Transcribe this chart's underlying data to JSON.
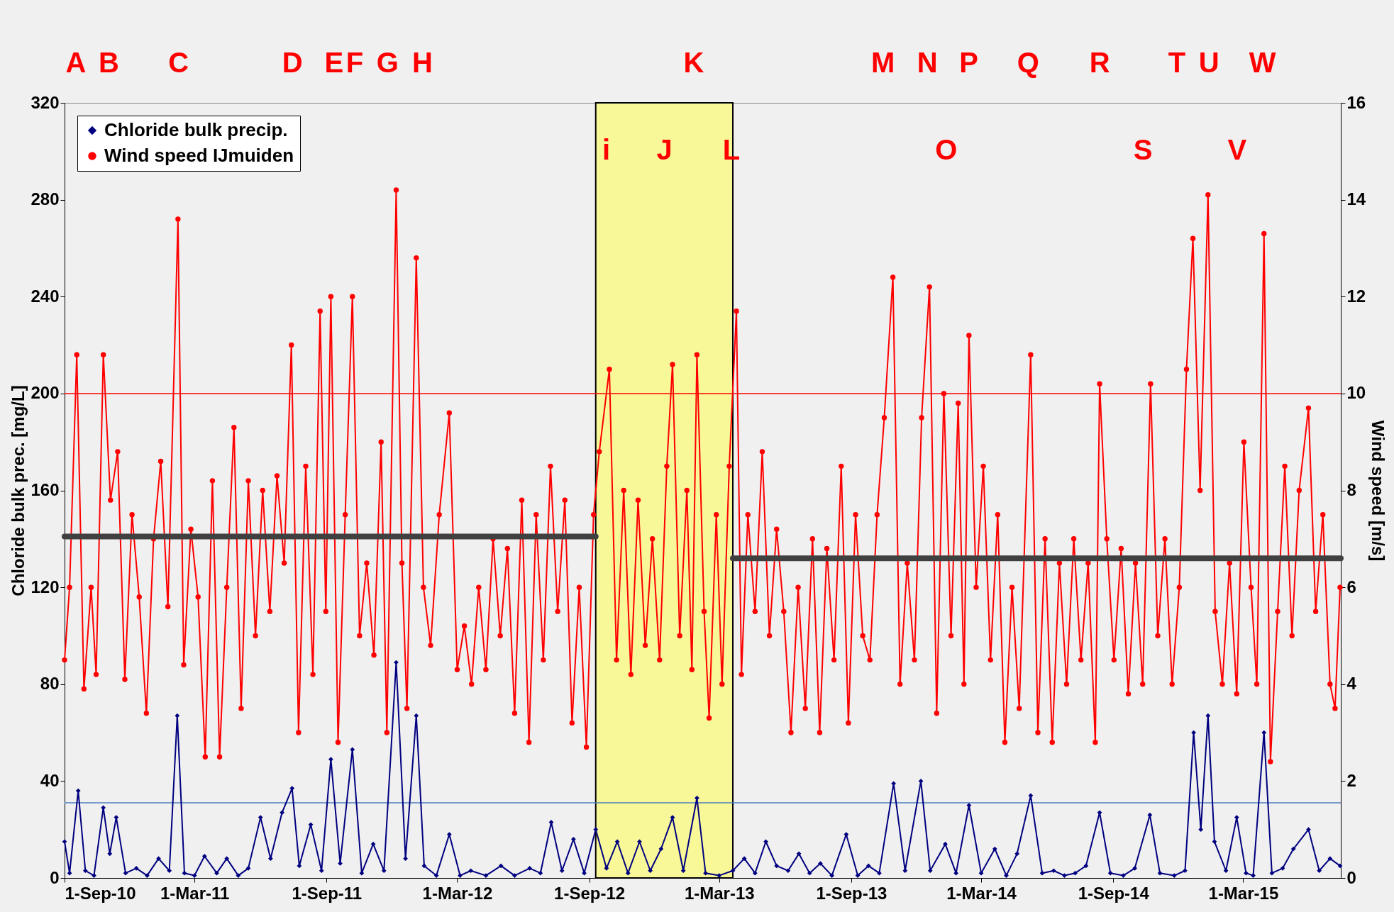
{
  "chart_data": {
    "type": "line",
    "ylabel": "Chloride bulk prec.  [mg/L]",
    "y2label": "Wind speed  [m/s]",
    "xlim": [
      "2010-09-01",
      "2015-07-15"
    ],
    "xticks": [
      {
        "value": "2010-09-01",
        "label": "1-Sep-10"
      },
      {
        "value": "2011-03-01",
        "label": "1-Mar-11"
      },
      {
        "value": "2011-09-01",
        "label": "1-Sep-11"
      },
      {
        "value": "2012-03-01",
        "label": "1-Mar-12"
      },
      {
        "value": "2012-09-01",
        "label": "1-Sep-12"
      },
      {
        "value": "2013-03-01",
        "label": "1-Mar-13"
      },
      {
        "value": "2013-09-01",
        "label": "1-Sep-13"
      },
      {
        "value": "2014-03-01",
        "label": "1-Mar-14"
      },
      {
        "value": "2014-09-01",
        "label": "1-Sep-14"
      },
      {
        "value": "2015-03-01",
        "label": "1-Mar-15"
      }
    ],
    "ylim": [
      0,
      320
    ],
    "yticks": [
      0,
      40,
      80,
      120,
      160,
      200,
      240,
      280,
      320
    ],
    "y2lim": [
      0,
      16
    ],
    "y2ticks": [
      0,
      2,
      4,
      6,
      8,
      10,
      12,
      14,
      16
    ],
    "legend": "top left",
    "series": [
      {
        "name": "Chloride bulk precip.",
        "color": "#000080",
        "marker": "diamond",
        "x": [
          "2010-09-01",
          "2010-09-08",
          "2010-09-20",
          "2010-09-30",
          "2010-10-12",
          "2010-10-25",
          "2010-11-03",
          "2010-11-12",
          "2010-11-25",
          "2010-12-10",
          "2010-12-25",
          "2011-01-10",
          "2011-01-25",
          "2011-02-05",
          "2011-02-15",
          "2011-03-01",
          "2011-03-15",
          "2011-04-01",
          "2011-04-15",
          "2011-05-01",
          "2011-05-15",
          "2011-06-01",
          "2011-06-15",
          "2011-07-01",
          "2011-07-15",
          "2011-07-25",
          "2011-08-10",
          "2011-08-25",
          "2011-09-07",
          "2011-09-20",
          "2011-10-07",
          "2011-10-20",
          "2011-11-05",
          "2011-11-20",
          "2011-12-07",
          "2011-12-20",
          "2012-01-04",
          "2012-01-15",
          "2012-02-01",
          "2012-02-19",
          "2012-03-05",
          "2012-03-20",
          "2012-04-10",
          "2012-05-01",
          "2012-05-20",
          "2012-06-10",
          "2012-06-25",
          "2012-07-10",
          "2012-07-25",
          "2012-08-10",
          "2012-08-25",
          "2012-09-10",
          "2012-09-25",
          "2012-10-10",
          "2012-10-25",
          "2012-11-10",
          "2012-11-25",
          "2012-12-10",
          "2012-12-26",
          "2013-01-10",
          "2013-01-29",
          "2013-02-10",
          "2013-03-01",
          "2013-03-20",
          "2013-04-05",
          "2013-04-20",
          "2013-05-05",
          "2013-05-20",
          "2013-06-05",
          "2013-06-20",
          "2013-07-05",
          "2013-07-20",
          "2013-08-05",
          "2013-08-25",
          "2013-09-10",
          "2013-09-25",
          "2013-10-10",
          "2013-10-30",
          "2013-11-15",
          "2013-12-07",
          "2013-12-20",
          "2014-01-10",
          "2014-01-25",
          "2014-02-12",
          "2014-03-01",
          "2014-03-20",
          "2014-04-05",
          "2014-04-20",
          "2014-05-09",
          "2014-05-25",
          "2014-06-10",
          "2014-06-25",
          "2014-07-10",
          "2014-07-25",
          "2014-08-13",
          "2014-08-28",
          "2014-09-15",
          "2014-10-01",
          "2014-10-22",
          "2014-11-05",
          "2014-11-25",
          "2014-12-10",
          "2014-12-22",
          "2015-01-01",
          "2015-01-11",
          "2015-01-20",
          "2015-02-05",
          "2015-02-20",
          "2015-03-05",
          "2015-03-15",
          "2015-03-30",
          "2015-04-10",
          "2015-04-25",
          "2015-05-10",
          "2015-05-31",
          "2015-06-15",
          "2015-06-30",
          "2015-07-14"
        ],
        "values": [
          15,
          2,
          36,
          3,
          1,
          29,
          10,
          25,
          2,
          4,
          1,
          8,
          3,
          67,
          2,
          1,
          9,
          2,
          8,
          1,
          4,
          25,
          8,
          27,
          37,
          5,
          22,
          3,
          49,
          6,
          53,
          2,
          14,
          3,
          89,
          8,
          67,
          5,
          1,
          18,
          1,
          3,
          1,
          5,
          1,
          4,
          2,
          23,
          3,
          16,
          2,
          20,
          4,
          15,
          2,
          15,
          3,
          12,
          25,
          3,
          33,
          2,
          1,
          3,
          8,
          2,
          15,
          5,
          3,
          10,
          2,
          6,
          1,
          18,
          1,
          5,
          2,
          39,
          3,
          40,
          3,
          14,
          2,
          30,
          2,
          12,
          1,
          10,
          34,
          2,
          3,
          1,
          2,
          5,
          27,
          2,
          1,
          4,
          26,
          2,
          1,
          3,
          60,
          20,
          67,
          15,
          3,
          25,
          2,
          1,
          60,
          2,
          4,
          12,
          20,
          3,
          8,
          5
        ]
      },
      {
        "name": "Wind speed IJmuiden",
        "color": "#ff0000",
        "marker": "circle",
        "axis": "y2",
        "x": [
          "2010-09-01",
          "2010-09-08",
          "2010-09-18",
          "2010-09-28",
          "2010-10-08",
          "2010-10-15",
          "2010-10-25",
          "2010-11-04",
          "2010-11-14",
          "2010-11-24",
          "2010-12-04",
          "2010-12-14",
          "2010-12-24",
          "2011-01-03",
          "2011-01-13",
          "2011-01-23",
          "2011-02-06",
          "2011-02-14",
          "2011-02-24",
          "2011-03-06",
          "2011-03-16",
          "2011-03-26",
          "2011-04-05",
          "2011-04-15",
          "2011-04-25",
          "2011-05-05",
          "2011-05-15",
          "2011-05-25",
          "2011-06-04",
          "2011-06-14",
          "2011-06-24",
          "2011-07-04",
          "2011-07-14",
          "2011-07-24",
          "2011-08-03",
          "2011-08-13",
          "2011-08-23",
          "2011-08-31",
          "2011-09-07",
          "2011-09-17",
          "2011-09-27",
          "2011-10-07",
          "2011-10-17",
          "2011-10-27",
          "2011-11-06",
          "2011-11-16",
          "2011-11-24",
          "2011-12-07",
          "2011-12-15",
          "2011-12-22",
          "2012-01-04",
          "2012-01-14",
          "2012-01-24",
          "2012-02-05",
          "2012-02-19",
          "2012-03-01",
          "2012-03-11",
          "2012-03-21",
          "2012-03-31",
          "2012-04-10",
          "2012-04-20",
          "2012-04-30",
          "2012-05-10",
          "2012-05-20",
          "2012-05-30",
          "2012-06-09",
          "2012-06-19",
          "2012-06-29",
          "2012-07-09",
          "2012-07-19",
          "2012-07-29",
          "2012-08-08",
          "2012-08-18",
          "2012-08-28",
          "2012-09-07",
          "2012-09-15",
          "2012-09-29",
          "2012-10-09",
          "2012-10-19",
          "2012-10-29",
          "2012-11-08",
          "2012-11-18",
          "2012-11-28",
          "2012-12-08",
          "2012-12-18",
          "2012-12-26",
          "2013-01-05",
          "2013-01-15",
          "2013-01-22",
          "2013-01-29",
          "2013-02-08",
          "2013-02-15",
          "2013-02-25",
          "2013-03-05",
          "2013-03-15",
          "2013-03-25",
          "2013-04-01",
          "2013-04-10",
          "2013-04-20",
          "2013-04-30",
          "2013-05-10",
          "2013-05-20",
          "2013-05-30",
          "2013-06-09",
          "2013-06-19",
          "2013-06-29",
          "2013-07-09",
          "2013-07-19",
          "2013-07-29",
          "2013-08-08",
          "2013-08-18",
          "2013-08-28",
          "2013-09-07",
          "2013-09-17",
          "2013-09-27",
          "2013-10-07",
          "2013-10-17",
          "2013-10-29",
          "2013-11-08",
          "2013-11-18",
          "2013-11-28",
          "2013-12-08",
          "2013-12-19",
          "2013-12-29",
          "2014-01-08",
          "2014-01-18",
          "2014-01-28",
          "2014-02-05",
          "2014-02-12",
          "2014-02-22",
          "2014-03-04",
          "2014-03-14",
          "2014-03-24",
          "2014-04-03",
          "2014-04-13",
          "2014-04-23",
          "2014-05-09",
          "2014-05-19",
          "2014-05-29",
          "2014-06-08",
          "2014-06-18",
          "2014-06-28",
          "2014-07-08",
          "2014-07-18",
          "2014-07-28",
          "2014-08-07",
          "2014-08-13",
          "2014-08-23",
          "2014-09-02",
          "2014-09-12",
          "2014-09-22",
          "2014-10-02",
          "2014-10-12",
          "2014-10-23",
          "2014-11-02",
          "2014-11-12",
          "2014-11-22",
          "2014-12-02",
          "2014-12-12",
          "2014-12-21",
          "2014-12-31",
          "2015-01-11",
          "2015-01-21",
          "2015-01-31",
          "2015-02-10",
          "2015-02-20",
          "2015-03-02",
          "2015-03-12",
          "2015-03-20",
          "2015-03-30",
          "2015-04-08",
          "2015-04-18",
          "2015-04-28",
          "2015-05-08",
          "2015-05-18",
          "2015-05-31",
          "2015-06-10",
          "2015-06-20",
          "2015-06-30",
          "2015-07-07",
          "2015-07-14"
        ],
        "values": [
          4.5,
          6.0,
          10.8,
          3.9,
          6.0,
          4.2,
          10.8,
          7.8,
          8.8,
          4.1,
          7.5,
          5.8,
          3.4,
          7.0,
          8.6,
          5.6,
          13.6,
          4.4,
          7.2,
          5.8,
          2.5,
          8.2,
          2.5,
          6.0,
          9.3,
          3.5,
          8.2,
          5.0,
          8.0,
          5.5,
          8.3,
          6.5,
          11.0,
          3.0,
          8.5,
          4.2,
          11.7,
          5.5,
          12.0,
          2.8,
          7.5,
          12.0,
          5.0,
          6.5,
          4.6,
          9.0,
          3.0,
          14.2,
          6.5,
          3.5,
          12.8,
          6.0,
          4.8,
          7.5,
          9.6,
          4.3,
          5.2,
          4.0,
          6.0,
          4.3,
          7.0,
          5.0,
          6.8,
          3.4,
          7.8,
          2.8,
          7.5,
          4.5,
          8.5,
          5.5,
          7.8,
          3.2,
          6.0,
          2.7,
          7.5,
          8.8,
          10.5,
          4.5,
          8.0,
          4.2,
          7.8,
          4.8,
          7.0,
          4.5,
          8.5,
          10.6,
          5.0,
          8.0,
          4.3,
          10.8,
          5.5,
          3.3,
          7.5,
          4.0,
          8.5,
          11.7,
          4.2,
          7.5,
          5.5,
          8.8,
          5.0,
          7.2,
          5.5,
          3.0,
          6.0,
          3.5,
          7.0,
          3.0,
          6.8,
          4.5,
          8.5,
          3.2,
          7.5,
          5.0,
          4.5,
          7.5,
          9.5,
          12.4,
          4.0,
          6.5,
          4.5,
          9.5,
          12.2,
          3.4,
          10.0,
          5.0,
          9.8,
          4.0,
          11.2,
          6.0,
          8.5,
          4.5,
          7.5,
          2.8,
          6.0,
          3.5,
          10.8,
          3.0,
          7.0,
          2.8,
          6.5,
          4.0,
          7.0,
          4.5,
          6.5,
          2.8,
          10.2,
          7.0,
          4.5,
          6.8,
          3.8,
          6.5,
          4.0,
          10.2,
          5.0,
          7.0,
          4.0,
          6.0,
          10.5,
          13.2,
          8.0,
          14.1,
          5.5,
          4.0,
          6.5,
          3.8,
          9.0,
          6.0,
          4.0,
          13.3,
          2.4,
          5.5,
          8.5,
          5.0,
          8.0,
          9.7,
          5.5,
          7.5,
          4.0,
          3.5,
          6.0
        ]
      },
      {
        "type": "line",
        "color": "#404040",
        "marker": "none",
        "axis": "y2",
        "x": [
          "2010-09-01",
          "2012-09-10"
        ],
        "values": [
          7.05,
          7.05
        ]
      },
      {
        "type": "line",
        "color": "#404040",
        "marker": "none",
        "axis": "y2",
        "x": [
          "2013-03-20",
          "2015-07-15"
        ],
        "values": [
          6.6,
          6.6
        ]
      }
    ],
    "ref_lines": [
      {
        "axis": "y2",
        "value": 10,
        "color": "#ff0000"
      },
      {
        "axis": "y",
        "value": 31,
        "color": "#4a7ebb"
      }
    ],
    "bands": [
      {
        "axis": "x",
        "from": "2012-09-10",
        "to": "2013-03-20",
        "color": "#ffff40"
      }
    ],
    "annotations": [
      "A",
      "B",
      "C",
      "D",
      "E",
      "F",
      "G",
      "H",
      "K",
      "M",
      "N",
      "P",
      "Q",
      "R",
      "T",
      "U",
      "W",
      "i",
      "J",
      "L",
      "O",
      "S",
      "V"
    ]
  }
}
